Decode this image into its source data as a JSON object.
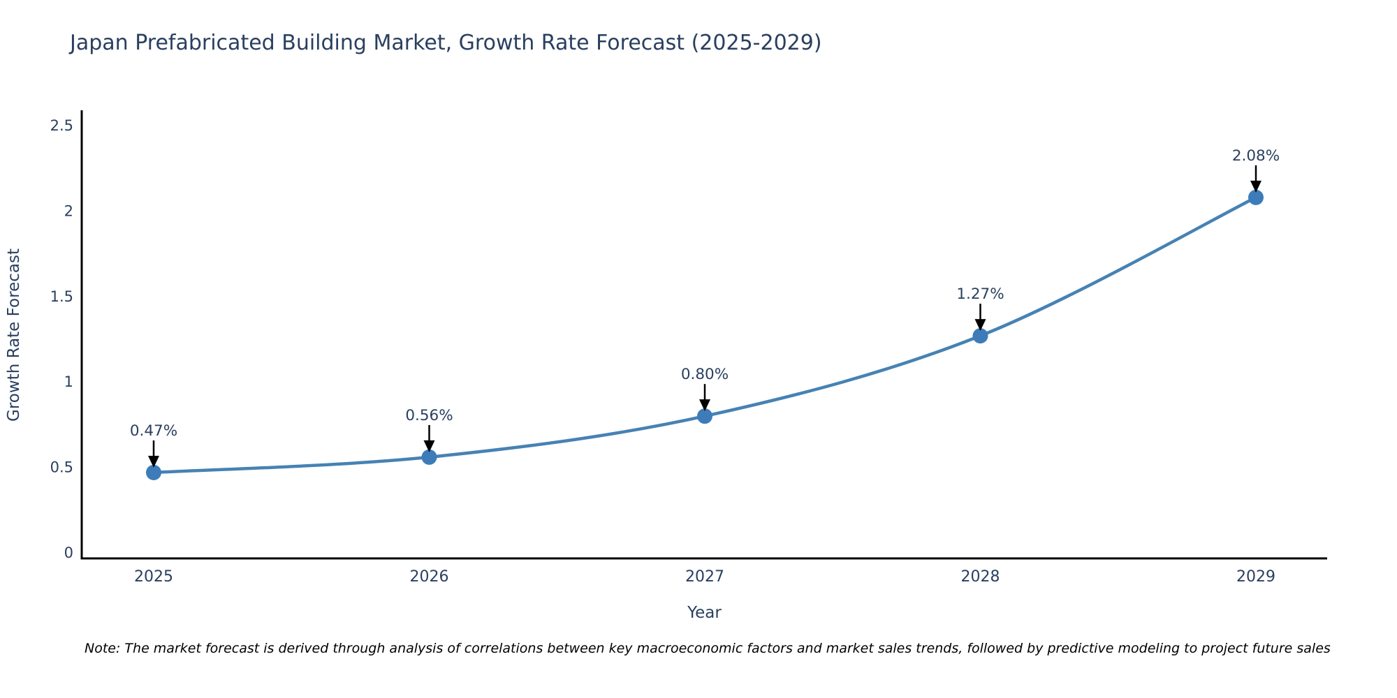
{
  "title": "Japan Prefabricated Building Market, Growth Rate Forecast (2025-2029)",
  "note": "Note: The market forecast is derived through analysis of correlations between key macroeconomic factors and market sales trends, followed by predictive modeling to project future sales",
  "chart_data": {
    "type": "line",
    "title": "Japan Prefabricated Building Market, Growth Rate Forecast (2025-2029)",
    "xlabel": "Year",
    "ylabel": "Growth Rate Forecast",
    "categories": [
      "2025",
      "2026",
      "2027",
      "2028",
      "2029"
    ],
    "values": [
      0.47,
      0.56,
      0.8,
      1.27,
      2.08
    ],
    "point_labels": [
      "0.47%",
      "0.56%",
      "0.80%",
      "1.27%",
      "2.08%"
    ],
    "yticks": [
      "0",
      "0.5",
      "1",
      "1.5",
      "2",
      "2.5"
    ],
    "ytick_values": [
      0,
      0.5,
      1,
      1.5,
      2,
      2.5
    ],
    "ylim": [
      0,
      2.5
    ],
    "grid": false,
    "legend": "none",
    "colors": {
      "line": "#4682b4",
      "marker": "#3d7cb9",
      "axis": "#000000",
      "text": "#2a3f5f",
      "annotation_arrow": "#000000",
      "background": "#ffffff"
    }
  }
}
